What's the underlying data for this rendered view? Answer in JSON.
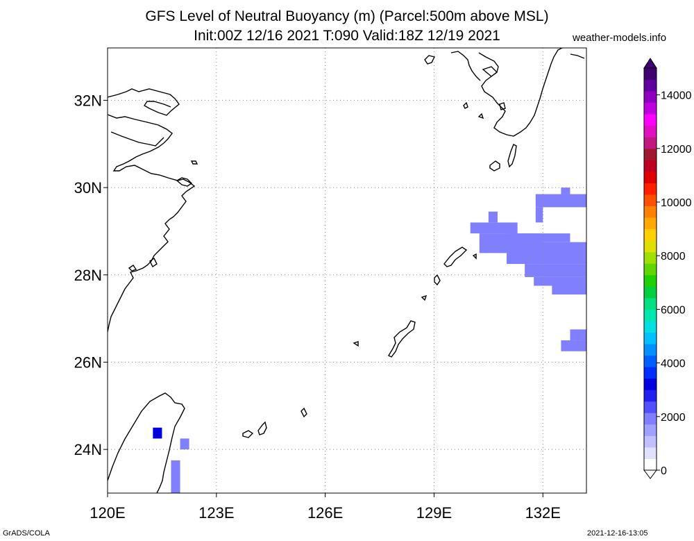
{
  "title_line1": "GFS Level of Neutral Buoyancy (m) (Parcel:500m above MSL)",
  "title_line2": "Init:00Z 12/16 2021 T:090 Valid:18Z 12/19 2021",
  "brand": "weather-models.info",
  "footer_left": "GrADS/COLA",
  "footer_right": "2021-12-16-13:05",
  "map": {
    "lon_range": [
      120,
      133.2
    ],
    "lat_range": [
      23,
      33.2
    ],
    "lon_ticks": [
      {
        "value": 120,
        "label": "120E"
      },
      {
        "value": 123,
        "label": "123E"
      },
      {
        "value": 126,
        "label": "126E"
      },
      {
        "value": 129,
        "label": "129E"
      },
      {
        "value": 132,
        "label": "132E"
      }
    ],
    "lat_ticks": [
      {
        "value": 24,
        "label": "24N"
      },
      {
        "value": 26,
        "label": "26N"
      },
      {
        "value": 28,
        "label": "28N"
      },
      {
        "value": 30,
        "label": "30N"
      },
      {
        "value": 32,
        "label": "32N"
      }
    ],
    "grid": "dotted"
  },
  "colorbar": {
    "min": 0,
    "max": 15000,
    "labels": [
      "0",
      "2000",
      "4000",
      "6000",
      "8000",
      "10000",
      "12000",
      "14000"
    ],
    "label_values": [
      0,
      2000,
      4000,
      6000,
      8000,
      10000,
      12000,
      14000
    ],
    "colors": [
      "#ffffff",
      "#e0e0ff",
      "#c0c0ff",
      "#a0a0ff",
      "#8080ff",
      "#5050ff",
      "#2020f0",
      "#0000e0",
      "#0030ff",
      "#0060ff",
      "#0090ff",
      "#00c0ff",
      "#00e0e0",
      "#00e8b0",
      "#00e080",
      "#00d040",
      "#20d000",
      "#60d800",
      "#a0e000",
      "#e0e000",
      "#ffd000",
      "#ffa800",
      "#ff8000",
      "#ff5000",
      "#ff2000",
      "#e00000",
      "#c00020",
      "#a01830",
      "#c01880",
      "#e010c0",
      "#ff00ff",
      "#c000e0",
      "#9000c0",
      "#6000a0",
      "#400070"
    ]
  },
  "data_cells": [
    {
      "lon_min": 131.8,
      "lon_max": 133.2,
      "lat_min": 29.55,
      "lat_max": 29.85,
      "value": 2100
    },
    {
      "lon_min": 132.5,
      "lon_max": 132.75,
      "lat_min": 29.85,
      "lat_max": 30.0,
      "value": 2100
    },
    {
      "lon_min": 131.8,
      "lon_max": 132.0,
      "lat_min": 29.2,
      "lat_max": 29.55,
      "value": 2100
    },
    {
      "lon_min": 130.5,
      "lon_max": 130.75,
      "lat_min": 29.2,
      "lat_max": 29.45,
      "value": 2100
    },
    {
      "lon_min": 130.0,
      "lon_max": 131.3,
      "lat_min": 28.95,
      "lat_max": 29.2,
      "value": 2100
    },
    {
      "lon_min": 130.25,
      "lon_max": 132.0,
      "lat_min": 28.5,
      "lat_max": 28.95,
      "value": 2100
    },
    {
      "lon_min": 131.0,
      "lon_max": 132.75,
      "lat_min": 28.75,
      "lat_max": 28.95,
      "value": 2100
    },
    {
      "lon_min": 131.0,
      "lon_max": 133.2,
      "lat_min": 28.25,
      "lat_max": 28.75,
      "value": 2100
    },
    {
      "lon_min": 131.5,
      "lon_max": 133.2,
      "lat_min": 27.95,
      "lat_max": 28.25,
      "value": 2100
    },
    {
      "lon_min": 131.75,
      "lon_max": 133.2,
      "lat_min": 27.75,
      "lat_max": 27.95,
      "value": 2100
    },
    {
      "lon_min": 132.25,
      "lon_max": 133.2,
      "lat_min": 27.55,
      "lat_max": 27.75,
      "value": 2100
    },
    {
      "lon_min": 132.75,
      "lon_max": 133.2,
      "lat_min": 26.5,
      "lat_max": 26.75,
      "value": 2100
    },
    {
      "lon_min": 132.5,
      "lon_max": 133.2,
      "lat_min": 26.25,
      "lat_max": 26.5,
      "value": 2100
    },
    {
      "lon_min": 121.25,
      "lon_max": 121.5,
      "lat_min": 24.25,
      "lat_max": 24.5,
      "value": 3000
    },
    {
      "lon_min": 122.0,
      "lon_max": 122.25,
      "lat_min": 24.0,
      "lat_max": 24.25,
      "value": 2100
    },
    {
      "lon_min": 121.75,
      "lon_max": 122.0,
      "lat_min": 23.0,
      "lat_max": 23.75,
      "value": 1800
    }
  ]
}
